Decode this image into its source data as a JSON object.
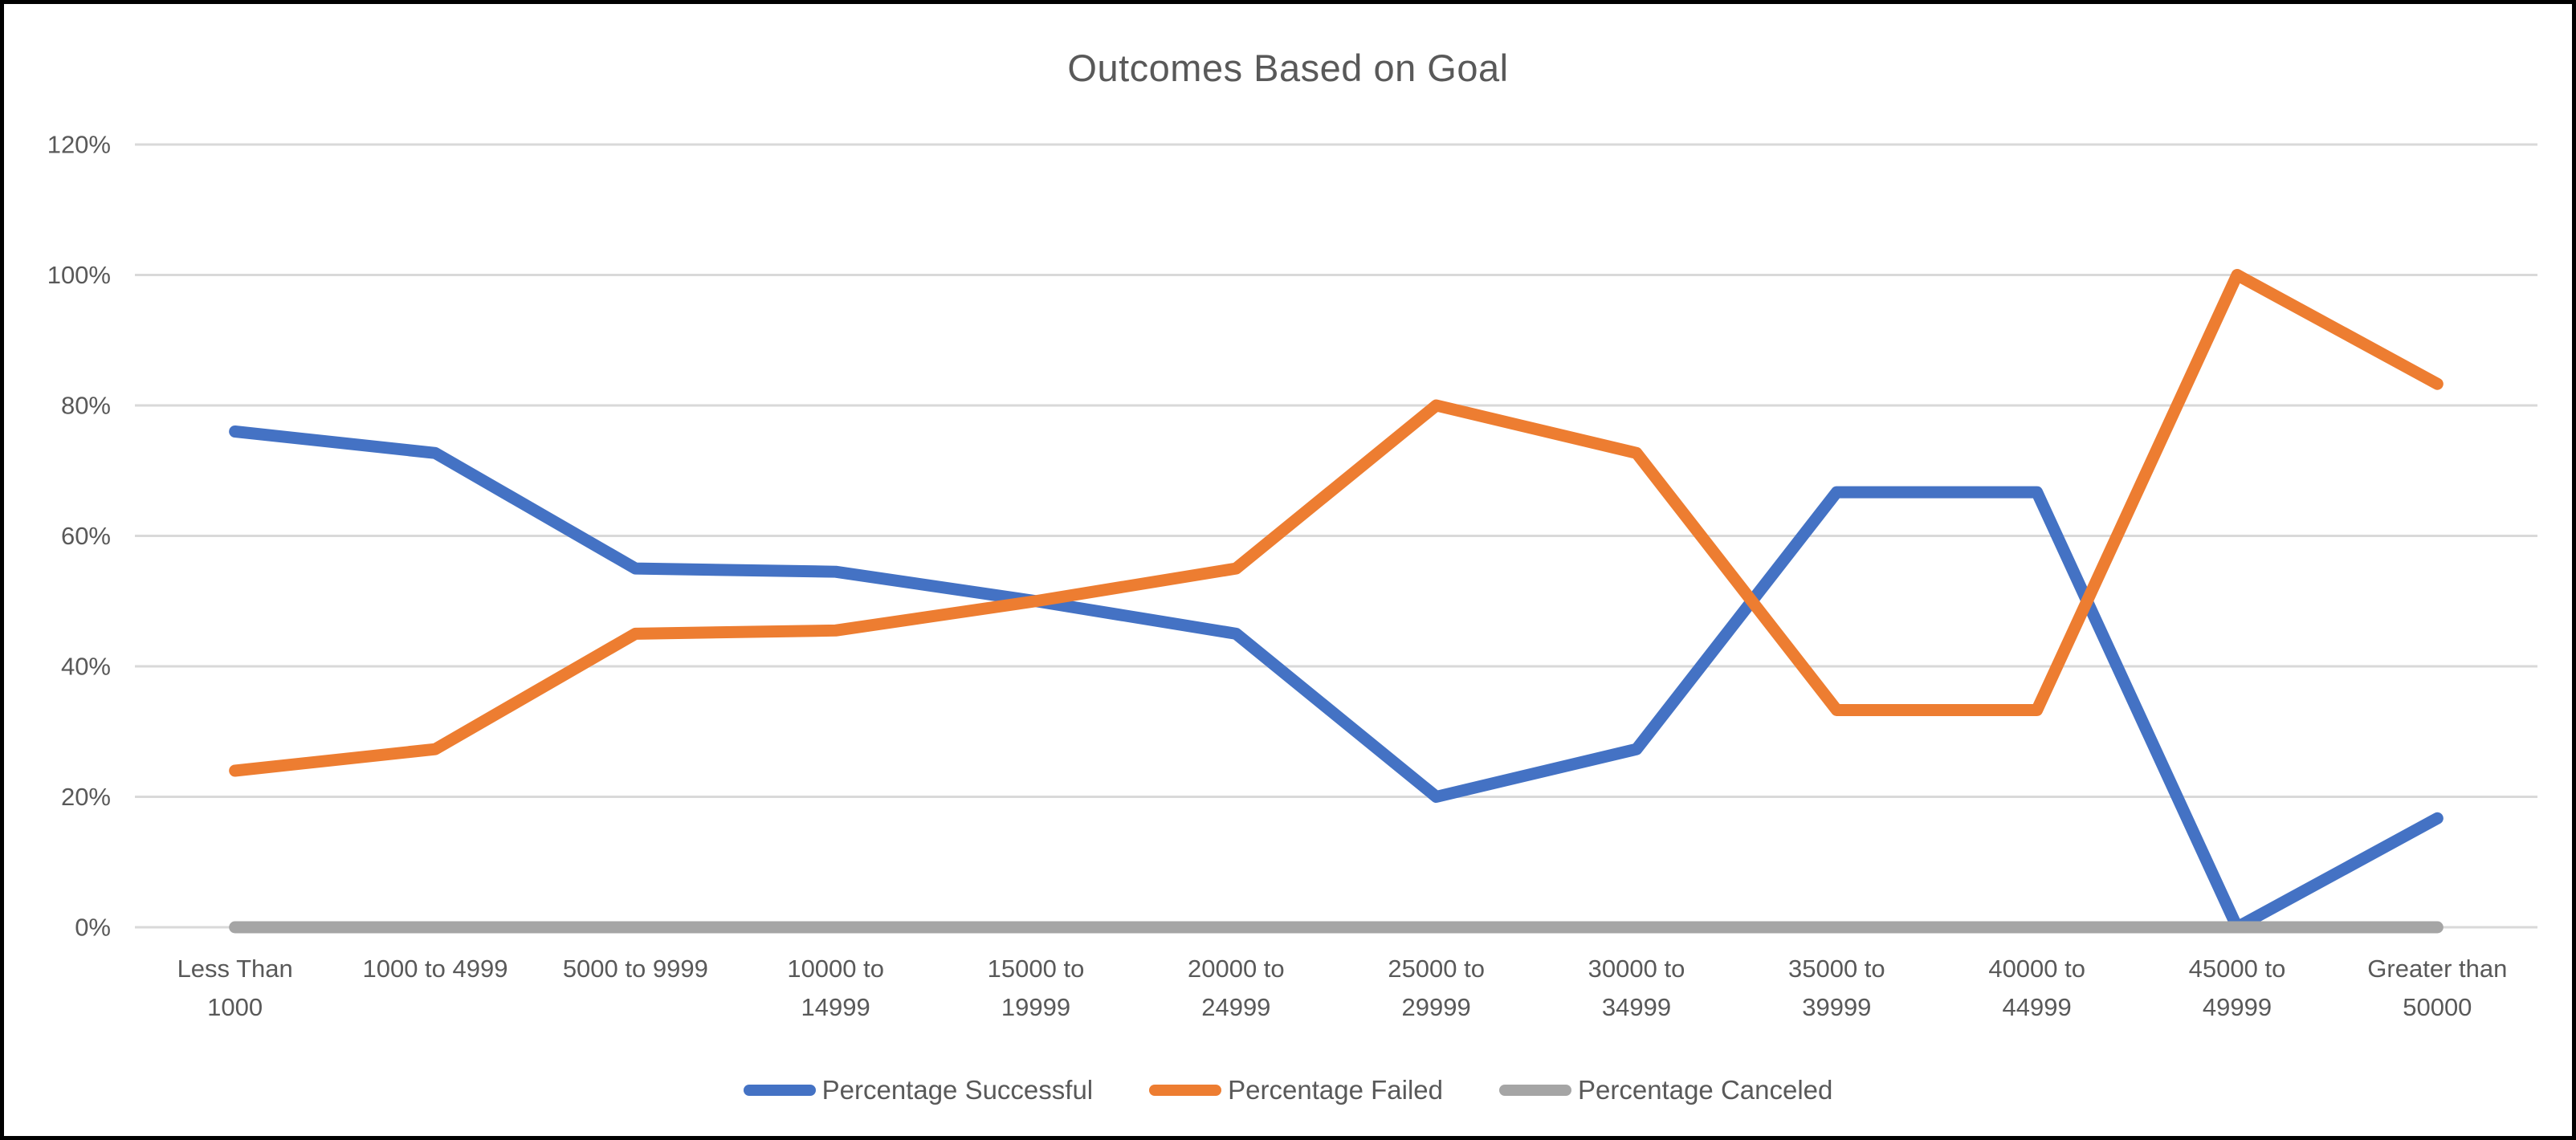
{
  "chart_data": {
    "type": "line",
    "title": "Outcomes Based on Goal",
    "categories": [
      "Less Than 1000",
      "1000 to 4999",
      "5000 to 9999",
      "10000 to 14999",
      "15000 to 19999",
      "20000 to 24999",
      "25000 to 29999",
      "30000 to 34999",
      "35000 to 39999",
      "40000 to 44999",
      "45000 to 49999",
      "Greater than 50000"
    ],
    "category_label_lines": [
      [
        "Less Than",
        "1000"
      ],
      [
        "1000 to 4999"
      ],
      [
        "5000 to 9999"
      ],
      [
        "10000 to",
        "14999"
      ],
      [
        "15000 to",
        "19999"
      ],
      [
        "20000 to",
        "24999"
      ],
      [
        "25000 to",
        "29999"
      ],
      [
        "30000 to",
        "34999"
      ],
      [
        "35000 to",
        "39999"
      ],
      [
        "40000 to",
        "44999"
      ],
      [
        "45000 to",
        "49999"
      ],
      [
        "Greater than",
        "50000"
      ]
    ],
    "series": [
      {
        "name": "Percentage Successful",
        "color": "#4472C4",
        "values": [
          76,
          72.7,
          55,
          54.5,
          50,
          45,
          20,
          27.3,
          66.7,
          66.7,
          0,
          16.7
        ]
      },
      {
        "name": "Percentage Failed",
        "color": "#ED7D31",
        "values": [
          24,
          27.3,
          45,
          45.5,
          50,
          55,
          80,
          72.7,
          33.3,
          33.3,
          100,
          83.3
        ]
      },
      {
        "name": "Percentage Canceled",
        "color": "#A5A5A5",
        "values": [
          0,
          0,
          0,
          0,
          0,
          0,
          0,
          0,
          0,
          0,
          0,
          0
        ]
      }
    ],
    "xlabel": "",
    "ylabel": "",
    "y_ticks": [
      {
        "label": "0%",
        "value": 0
      },
      {
        "label": "20%",
        "value": 20
      },
      {
        "label": "40%",
        "value": 40
      },
      {
        "label": "60%",
        "value": 60
      },
      {
        "label": "80%",
        "value": 80
      },
      {
        "label": "100%",
        "value": 100
      },
      {
        "label": "120%",
        "value": 120
      }
    ],
    "ylim": [
      0,
      120
    ],
    "grid": true,
    "legend_position": "bottom"
  },
  "style": {
    "background": "#FFFFFF",
    "frame_border_color": "#000000",
    "gridline_color": "#D9D9D9",
    "text_color": "#595959",
    "title_color": "#595959"
  }
}
